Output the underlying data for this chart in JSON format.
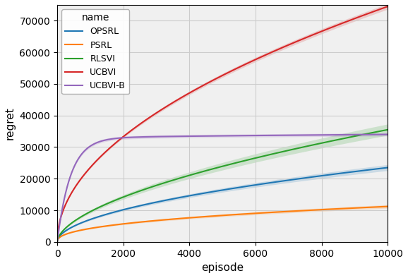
{
  "title": "",
  "xlabel": "episode",
  "ylabel": "regret",
  "legend_title": "name",
  "xlim": [
    0,
    10000
  ],
  "ylim": [
    0,
    75000
  ],
  "series": [
    {
      "name": "OPSRL",
      "color": "#1f77b4"
    },
    {
      "name": "PSRL",
      "color": "#ff7f0e"
    },
    {
      "name": "RLSVI",
      "color": "#2ca02c"
    },
    {
      "name": "UCBVI",
      "color": "#d62728"
    },
    {
      "name": "UCBVI-B",
      "color": "#9467bd"
    }
  ],
  "legend_order": [
    "OPSRL",
    "PSRL",
    "RLSVI",
    "UCBVI",
    "UCBVI-B"
  ],
  "xticks": [
    0,
    2000,
    4000,
    6000,
    8000,
    10000
  ],
  "yticks": [
    0,
    10000,
    20000,
    30000,
    40000,
    50000,
    60000,
    70000
  ],
  "grid": true,
  "grid_color": "#cccccc",
  "background_color": "#f0f0f0"
}
